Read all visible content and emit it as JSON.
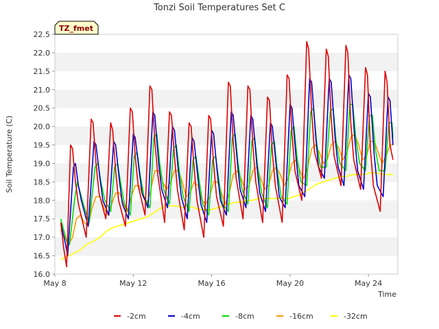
{
  "chart_data": {
    "type": "line",
    "title": "Tonzi Soil Temperatures Set C",
    "xlabel": "Time",
    "ylabel": "Soil Temperature (C)",
    "tag": "TZ_fmet",
    "xlim": [
      0,
      17.5
    ],
    "ylim": [
      16.0,
      22.5
    ],
    "yticks": [
      16.0,
      16.5,
      17.0,
      17.5,
      18.0,
      18.5,
      19.0,
      19.5,
      20.0,
      20.5,
      21.0,
      21.5,
      22.0,
      22.5
    ],
    "xticks": [
      {
        "value": 0,
        "label": "May 8"
      },
      {
        "value": 4,
        "label": "May 12"
      },
      {
        "value": 8,
        "label": "May 16"
      },
      {
        "value": 12,
        "label": "May 20"
      },
      {
        "value": 16,
        "label": "May 24"
      }
    ],
    "grid": true,
    "legend_position": "bottom",
    "series": [
      {
        "name": "-2cm",
        "color": "#dd0000",
        "x": [
          0.3,
          0.45,
          0.6,
          0.8,
          0.9,
          1.05,
          1.2,
          1.6,
          1.85,
          1.95,
          2.1,
          2.25,
          2.6,
          2.85,
          2.95,
          3.1,
          3.25,
          3.6,
          3.85,
          3.95,
          4.1,
          4.25,
          4.6,
          4.85,
          4.95,
          5.1,
          5.25,
          5.6,
          5.85,
          5.95,
          6.1,
          6.25,
          6.6,
          6.85,
          6.95,
          7.1,
          7.25,
          7.6,
          7.85,
          7.95,
          8.1,
          8.25,
          8.6,
          8.85,
          8.95,
          9.1,
          9.25,
          9.6,
          9.85,
          9.95,
          10.1,
          10.25,
          10.6,
          10.85,
          10.95,
          11.1,
          11.25,
          11.6,
          11.85,
          11.95,
          12.1,
          12.25,
          12.6,
          12.85,
          12.95,
          13.1,
          13.25,
          13.6,
          13.85,
          13.95,
          14.1,
          14.25,
          14.6,
          14.85,
          14.95,
          15.1,
          15.25,
          15.6,
          15.85,
          15.95,
          16.1,
          16.25,
          16.6,
          16.85,
          16.95,
          17.1,
          17.25
        ],
        "values": [
          17.4,
          16.7,
          16.2,
          19.5,
          19.4,
          18.5,
          17.9,
          17.0,
          20.2,
          20.1,
          19.0,
          18.2,
          17.5,
          20.1,
          19.9,
          18.8,
          18.0,
          17.3,
          20.5,
          20.4,
          19.2,
          18.4,
          17.6,
          21.1,
          21.0,
          19.6,
          18.7,
          17.4,
          20.4,
          20.3,
          19.2,
          18.3,
          17.2,
          20.1,
          20.0,
          18.9,
          18.0,
          17.0,
          20.3,
          20.2,
          19.0,
          18.1,
          17.3,
          21.2,
          21.1,
          19.6,
          18.6,
          17.5,
          21.1,
          21.0,
          19.5,
          18.5,
          17.4,
          20.8,
          20.7,
          19.3,
          18.4,
          17.4,
          21.4,
          21.3,
          19.8,
          18.8,
          18.0,
          22.3,
          22.1,
          20.4,
          19.3,
          18.6,
          22.1,
          21.9,
          20.2,
          19.2,
          18.4,
          22.2,
          22.0,
          20.1,
          19.1,
          18.3,
          21.6,
          21.4,
          19.4,
          18.4,
          17.7,
          21.5,
          21.2,
          19.5,
          19.1
        ]
      },
      {
        "name": "-4cm",
        "color": "#0000cc",
        "x": [
          0.3,
          0.55,
          0.65,
          0.95,
          1.05,
          1.2,
          1.35,
          1.7,
          2.0,
          2.1,
          2.3,
          2.45,
          2.75,
          3.0,
          3.1,
          3.3,
          3.45,
          3.75,
          4.0,
          4.1,
          4.3,
          4.45,
          4.75,
          5.0,
          5.1,
          5.3,
          5.45,
          5.75,
          6.0,
          6.1,
          6.3,
          6.45,
          6.75,
          7.0,
          7.1,
          7.3,
          7.45,
          7.75,
          8.0,
          8.1,
          8.3,
          8.45,
          8.75,
          9.0,
          9.1,
          9.3,
          9.45,
          9.75,
          10.0,
          10.1,
          10.3,
          10.45,
          10.75,
          11.0,
          11.1,
          11.3,
          11.45,
          11.75,
          12.0,
          12.1,
          12.3,
          12.45,
          12.75,
          13.0,
          13.1,
          13.3,
          13.45,
          13.75,
          14.0,
          14.1,
          14.3,
          14.45,
          14.75,
          15.0,
          15.1,
          15.3,
          15.45,
          15.75,
          16.0,
          16.1,
          16.3,
          16.45,
          16.75,
          17.0,
          17.1,
          17.25
        ],
        "values": [
          17.4,
          16.8,
          16.5,
          18.9,
          19.0,
          18.4,
          18.0,
          17.3,
          19.6,
          19.5,
          18.6,
          18.0,
          17.6,
          19.6,
          19.5,
          18.5,
          17.9,
          17.5,
          19.8,
          19.7,
          18.8,
          18.2,
          17.8,
          20.4,
          20.3,
          19.0,
          18.3,
          17.8,
          20.0,
          19.9,
          18.8,
          18.1,
          17.5,
          19.7,
          19.6,
          18.6,
          17.9,
          17.4,
          19.9,
          19.8,
          18.7,
          18.0,
          17.6,
          20.4,
          20.3,
          19.1,
          18.3,
          17.8,
          20.3,
          20.2,
          19.0,
          18.2,
          17.7,
          20.1,
          20.0,
          18.9,
          18.1,
          17.8,
          20.6,
          20.5,
          19.2,
          18.4,
          18.1,
          21.3,
          21.2,
          19.8,
          18.9,
          18.6,
          21.3,
          21.2,
          19.7,
          18.9,
          18.4,
          21.4,
          21.3,
          19.7,
          18.8,
          18.3,
          20.9,
          20.8,
          19.2,
          18.4,
          18.1,
          20.8,
          20.7,
          19.5
        ]
      },
      {
        "name": "-8cm",
        "color": "#00dd00",
        "x": [
          0.3,
          0.6,
          0.75,
          1.0,
          1.15,
          1.25,
          1.45,
          1.75,
          2.05,
          2.2,
          2.35,
          2.55,
          2.85,
          3.05,
          3.2,
          3.35,
          3.55,
          3.85,
          4.05,
          4.2,
          4.35,
          4.55,
          4.85,
          5.05,
          5.2,
          5.35,
          5.55,
          5.85,
          6.05,
          6.2,
          6.35,
          6.55,
          6.85,
          7.05,
          7.2,
          7.35,
          7.55,
          7.85,
          8.05,
          8.2,
          8.35,
          8.55,
          8.85,
          9.05,
          9.2,
          9.35,
          9.55,
          9.85,
          10.05,
          10.2,
          10.35,
          10.55,
          10.85,
          11.05,
          11.2,
          11.35,
          11.55,
          11.85,
          12.05,
          12.2,
          12.35,
          12.55,
          12.85,
          13.05,
          13.2,
          13.35,
          13.55,
          13.85,
          14.05,
          14.2,
          14.35,
          14.55,
          14.85,
          15.05,
          15.2,
          15.35,
          15.55,
          15.85,
          16.05,
          16.2,
          16.35,
          16.55,
          16.85,
          17.05,
          17.2,
          17.25
        ],
        "values": [
          17.5,
          16.9,
          16.8,
          18.0,
          18.5,
          18.3,
          17.9,
          17.4,
          18.9,
          19.0,
          18.5,
          18.0,
          17.7,
          18.9,
          19.0,
          18.5,
          17.9,
          17.6,
          19.2,
          19.3,
          18.7,
          18.1,
          17.8,
          19.7,
          19.8,
          19.0,
          18.3,
          17.9,
          19.4,
          19.5,
          18.8,
          18.1,
          17.7,
          19.1,
          19.2,
          18.6,
          17.9,
          17.6,
          19.1,
          19.2,
          18.6,
          17.9,
          17.7,
          19.7,
          19.8,
          19.0,
          18.3,
          17.9,
          19.6,
          19.7,
          18.9,
          18.2,
          17.8,
          19.5,
          19.6,
          18.8,
          18.1,
          17.9,
          19.9,
          20.0,
          19.2,
          18.5,
          18.4,
          20.4,
          20.5,
          19.6,
          18.9,
          18.9,
          20.4,
          20.5,
          19.6,
          19.0,
          18.8,
          20.6,
          20.6,
          19.7,
          19.0,
          18.8,
          20.3,
          20.3,
          19.4,
          18.8,
          18.8,
          20.1,
          20.1,
          19.7
        ]
      },
      {
        "name": "-16cm",
        "color": "#ff9900",
        "x": [
          0.3,
          0.5,
          0.7,
          0.9,
          1.1,
          1.3,
          1.5,
          1.7,
          1.9,
          2.1,
          2.3,
          2.5,
          2.7,
          2.9,
          3.1,
          3.3,
          3.5,
          3.7,
          3.9,
          4.1,
          4.3,
          4.5,
          4.7,
          4.9,
          5.1,
          5.3,
          5.5,
          5.7,
          5.9,
          6.1,
          6.3,
          6.5,
          6.7,
          6.9,
          7.1,
          7.3,
          7.5,
          7.7,
          7.9,
          8.1,
          8.3,
          8.5,
          8.7,
          8.9,
          9.1,
          9.3,
          9.5,
          9.7,
          9.9,
          10.1,
          10.3,
          10.5,
          10.7,
          10.9,
          11.1,
          11.3,
          11.5,
          11.7,
          11.9,
          12.1,
          12.3,
          12.5,
          12.7,
          12.9,
          13.1,
          13.3,
          13.5,
          13.7,
          13.9,
          14.1,
          14.3,
          14.5,
          14.7,
          14.9,
          15.1,
          15.3,
          15.5,
          15.7,
          15.9,
          16.1,
          16.3,
          16.5,
          16.7,
          16.9,
          17.1,
          17.25
        ],
        "values": [
          17.2,
          17.0,
          16.8,
          17.0,
          17.5,
          17.6,
          17.4,
          17.3,
          17.8,
          18.1,
          18.1,
          17.8,
          17.6,
          17.9,
          18.2,
          18.2,
          17.9,
          17.7,
          18.1,
          18.4,
          18.4,
          18.1,
          17.9,
          18.3,
          18.8,
          18.8,
          18.5,
          18.3,
          18.5,
          18.8,
          18.8,
          18.5,
          18.1,
          18.2,
          18.5,
          18.4,
          18.0,
          17.9,
          18.1,
          18.5,
          18.5,
          18.2,
          17.9,
          18.2,
          18.7,
          18.8,
          18.6,
          18.3,
          18.4,
          18.8,
          18.9,
          18.6,
          18.3,
          18.4,
          18.8,
          18.9,
          18.7,
          18.4,
          18.6,
          19.0,
          19.1,
          18.8,
          18.6,
          18.9,
          19.4,
          19.5,
          19.3,
          19.0,
          19.1,
          19.5,
          19.6,
          19.4,
          19.1,
          19.3,
          19.7,
          19.8,
          19.5,
          19.1,
          19.2,
          19.6,
          19.6,
          19.3,
          19.0,
          19.2,
          19.5,
          19.5
        ]
      },
      {
        "name": "-32cm",
        "color": "#ffff00",
        "x": [
          0.3,
          0.5,
          0.7,
          0.9,
          1.1,
          1.3,
          1.6,
          2.0,
          2.3,
          2.6,
          2.9,
          3.2,
          3.5,
          3.8,
          4.1,
          4.4,
          4.7,
          5.0,
          5.3,
          5.6,
          5.9,
          6.2,
          6.5,
          6.8,
          7.1,
          7.4,
          7.7,
          8.0,
          8.3,
          8.6,
          8.9,
          9.2,
          9.5,
          9.8,
          10.1,
          10.4,
          10.7,
          11.0,
          11.3,
          11.6,
          11.9,
          12.2,
          12.5,
          12.8,
          13.1,
          13.4,
          13.7,
          14.0,
          14.3,
          14.6,
          14.9,
          15.2,
          15.5,
          15.8,
          16.1,
          16.4,
          16.7,
          17.0,
          17.25
        ],
        "values": [
          16.4,
          16.45,
          16.5,
          16.55,
          16.6,
          16.65,
          16.8,
          16.9,
          17.0,
          17.15,
          17.25,
          17.3,
          17.35,
          17.4,
          17.45,
          17.5,
          17.55,
          17.65,
          17.75,
          17.85,
          17.85,
          17.85,
          17.8,
          17.85,
          17.8,
          17.75,
          17.75,
          17.75,
          17.8,
          17.85,
          17.9,
          17.95,
          17.95,
          18.0,
          18.0,
          18.05,
          18.05,
          18.05,
          18.05,
          18.05,
          18.05,
          18.1,
          18.15,
          18.25,
          18.35,
          18.45,
          18.5,
          18.55,
          18.6,
          18.65,
          18.65,
          18.7,
          18.7,
          18.7,
          18.75,
          18.75,
          18.7,
          18.7,
          18.7
        ]
      }
    ]
  }
}
